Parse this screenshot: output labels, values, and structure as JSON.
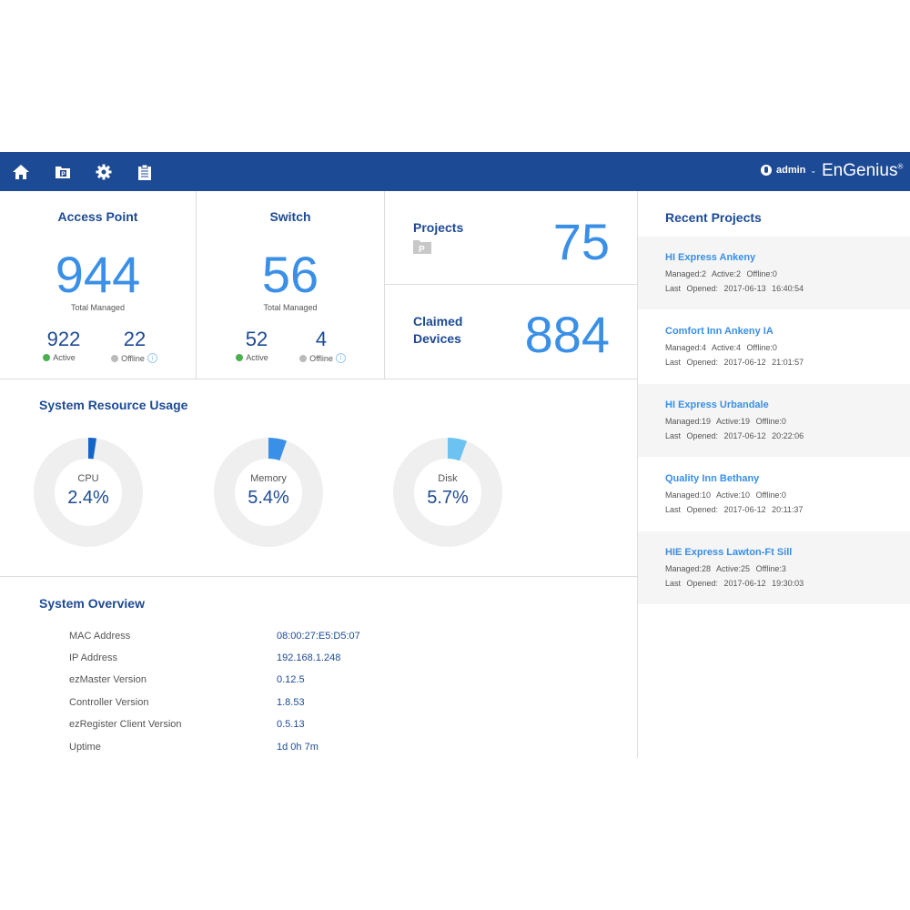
{
  "header": {
    "nav_icons": [
      "home-icon",
      "project-folder-icon",
      "gear-icon",
      "clipboard-icon"
    ],
    "user": "admin",
    "brand": "EnGenius",
    "brand_mark": "®",
    "color": "#1d4a94"
  },
  "access_point": {
    "title": "Access Point",
    "total": "944",
    "total_label": "Total Managed",
    "active": "922",
    "active_label": "Active",
    "offline": "22",
    "offline_label": "Offline"
  },
  "switch": {
    "title": "Switch",
    "total": "56",
    "total_label": "Total Managed",
    "active": "52",
    "active_label": "Active",
    "offline": "4",
    "offline_label": "Offline"
  },
  "projects": {
    "title": "Projects",
    "count": "75"
  },
  "claimed": {
    "title_line1": "Claimed",
    "title_line2": "Devices",
    "count": "884"
  },
  "resources": {
    "title": "System Resource Usage",
    "items": [
      {
        "label": "CPU",
        "value": "2.4%",
        "percent": 2.4,
        "color": "#1565c8"
      },
      {
        "label": "Memory",
        "value": "5.4%",
        "percent": 5.4,
        "color": "#3a8fe6"
      },
      {
        "label": "Disk",
        "value": "5.7%",
        "percent": 5.7,
        "color": "#6cc3f2"
      }
    ]
  },
  "overview": {
    "title": "System Overview",
    "rows": [
      {
        "key": "MAC Address",
        "value": "08:00:27:E5:D5:07"
      },
      {
        "key": "IP Address",
        "value": "192.168.1.248"
      },
      {
        "key": "ezMaster Version",
        "value": "0.12.5"
      },
      {
        "key": "Controller Version",
        "value": "1.8.53"
      },
      {
        "key": "ezRegister Client Version",
        "value": "0.5.13"
      },
      {
        "key": "Uptime",
        "value": "1d 0h 7m"
      }
    ]
  },
  "recent": {
    "title": "Recent Projects",
    "items": [
      {
        "name": "HI Express Ankeny",
        "stats": "Managed:2  Active:2  Offline:0",
        "opened": "Last Opened: 2017-06-13 16:40:54"
      },
      {
        "name": "Comfort Inn Ankeny IA",
        "stats": "Managed:4  Active:4  Offline:0",
        "opened": "Last Opened: 2017-06-12 21:01:57"
      },
      {
        "name": "HI Express Urbandale",
        "stats": "Managed:19  Active:19  Offline:0",
        "opened": "Last Opened: 2017-06-12 20:22:06"
      },
      {
        "name": "Quality Inn Bethany",
        "stats": "Managed:10  Active:10  Offline:0",
        "opened": "Last Opened: 2017-06-12 20:11:37"
      },
      {
        "name": "HIE Express Lawton-Ft Sill",
        "stats": "Managed:28  Active:25  Offline:3",
        "opened": "Last Opened: 2017-06-12 19:30:03"
      }
    ]
  }
}
